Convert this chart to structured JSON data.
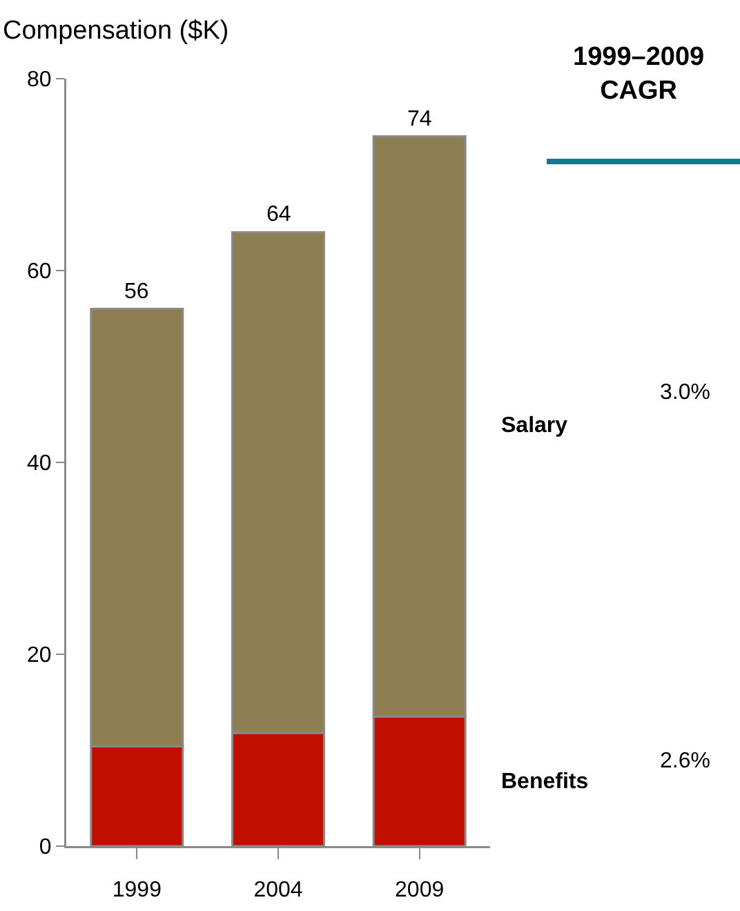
{
  "chart_data": {
    "type": "bar",
    "stacked": true,
    "ylabel": "Compensation ($K)",
    "categories": [
      "1999",
      "2004",
      "2009"
    ],
    "series": [
      {
        "name": "Benefits",
        "color": "#c00f00",
        "values": [
          10.4,
          11.8,
          13.5
        ]
      },
      {
        "name": "Salary",
        "color": "#8f7e52",
        "values": [
          45.6,
          52.2,
          60.5
        ]
      }
    ],
    "totals": [
      "56",
      "64",
      "74"
    ],
    "ylim": [
      0,
      80
    ],
    "yticks": [
      0,
      20,
      40,
      60,
      80
    ],
    "grid": false,
    "legend": false,
    "annotations": [
      "1999–2009\nCAGR",
      "3.0%",
      "2.6%"
    ]
  }
}
